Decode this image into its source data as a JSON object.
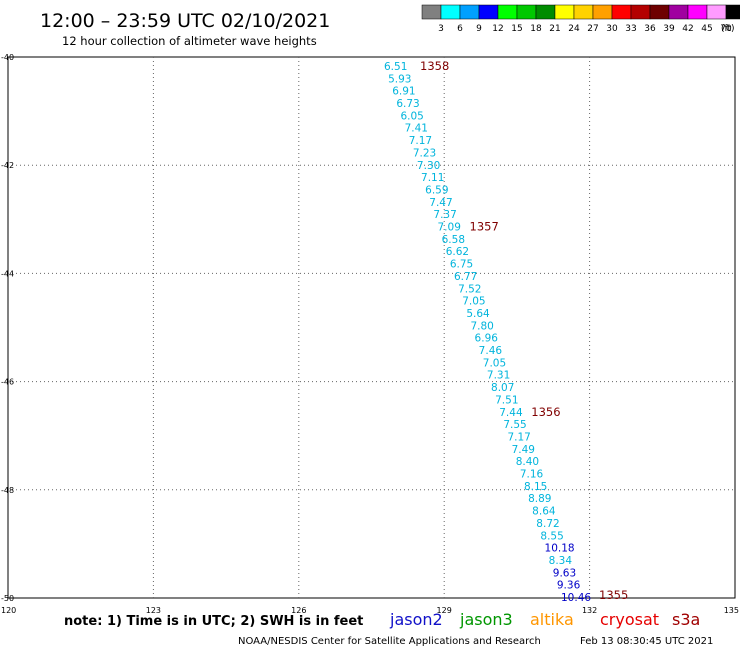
{
  "header": {
    "title": "12:00 – 23:59 UTC 02/10/2021",
    "subtitle": "12 hour collection of altimeter wave heights"
  },
  "legend": {
    "swatches": [
      {
        "color": "#808080",
        "label": "3"
      },
      {
        "color": "#00ffff",
        "label": "6"
      },
      {
        "color": "#00a0ff",
        "label": "9"
      },
      {
        "color": "#0000ff",
        "label": "12"
      },
      {
        "color": "#00ff00",
        "label": "15"
      },
      {
        "color": "#00c800",
        "label": "18"
      },
      {
        "color": "#008c00",
        "label": "21"
      },
      {
        "color": "#ffff00",
        "label": "24"
      },
      {
        "color": "#ffd200",
        "label": "27"
      },
      {
        "color": "#ffa000",
        "label": "30"
      },
      {
        "color": "#ff0000",
        "label": "33"
      },
      {
        "color": "#b40000",
        "label": "36"
      },
      {
        "color": "#6e0000",
        "label": "39"
      },
      {
        "color": "#a000a0",
        "label": "42"
      },
      {
        "color": "#ff00ff",
        "label": "45"
      },
      {
        "color": "#ff9bff",
        "label": "70"
      },
      {
        "color": "#000000",
        "label": ""
      }
    ],
    "unit": "(ft)"
  },
  "footer": {
    "note": "note:  1) Time is in UTC;  2) SWH is in feet",
    "satellites": [
      {
        "name": "jason2",
        "color": "#1010c8"
      },
      {
        "name": "jason3",
        "color": "#009600"
      },
      {
        "name": "altika",
        "color": "#ff9600"
      },
      {
        "name": "cryosat",
        "color": "#e60000"
      },
      {
        "name": "s3a",
        "color": "#a00000"
      }
    ],
    "credit": "NOAA/NESDIS Center for Satellite Applications and Research",
    "timestamp": "Feb 13 08:30:45 UTC 2021"
  },
  "chart_data": {
    "type": "scatter",
    "title": "12:00 – 23:59 UTC 02/10/2021",
    "subtitle": "12 hour collection of altimeter wave heights",
    "x_axis": {
      "range": [
        120,
        135
      ],
      "ticks": [
        120,
        123,
        126,
        129,
        132,
        135
      ],
      "tick_labels": [
        "120",
        "123",
        "126",
        "129",
        "132",
        "135"
      ]
    },
    "y_axis": {
      "range": [
        -50,
        -40
      ],
      "ticks": [
        -50,
        -48,
        -46,
        -44,
        -42,
        -40
      ],
      "tick_labels": [
        "-50",
        "-48",
        "-46",
        "-44",
        "-42",
        "-40"
      ]
    },
    "grid": "dotted",
    "wave_heights_ft": [
      {
        "lon": 128.2,
        "lat": -40.1,
        "swh": "6.51",
        "color": "#00b4dc"
      },
      {
        "lon": 128.35,
        "lat": -40.4,
        "swh": "5.93",
        "color": "#00b4dc"
      },
      {
        "lon": 128.45,
        "lat": -40.7,
        "swh": "6.91",
        "color": "#00b4dc"
      },
      {
        "lon": 128.5,
        "lat": -41.0,
        "swh": "6.73",
        "color": "#00b4dc"
      },
      {
        "lon": 128.6,
        "lat": -41.3,
        "swh": "6.05",
        "color": "#00b4dc"
      },
      {
        "lon": 128.65,
        "lat": -41.6,
        "swh": "7.41",
        "color": "#00b4dc"
      },
      {
        "lon": 128.75,
        "lat": -41.9,
        "swh": "7.17",
        "color": "#00b4dc"
      },
      {
        "lon": 128.8,
        "lat": -42.2,
        "swh": "7.23",
        "color": "#00b4dc"
      },
      {
        "lon": 128.9,
        "lat": -42.4,
        "swh": "7.30",
        "color": "#00b4dc"
      },
      {
        "lon": 128.95,
        "lat": -42.7,
        "swh": "7.11",
        "color": "#00b4dc"
      },
      {
        "lon": 129.0,
        "lat": -43.0,
        "swh": "6.59",
        "color": "#00b4dc"
      },
      {
        "lon": 129.1,
        "lat": -43.3,
        "swh": "7.47",
        "color": "#00b4dc"
      },
      {
        "lon": 129.15,
        "lat": -43.6,
        "swh": "7.37",
        "color": "#00b4dc"
      },
      {
        "lon": 129.2,
        "lat": -43.9,
        "swh": "7.09",
        "color": "#00b4dc"
      },
      {
        "lon": 129.3,
        "lat": -44.2,
        "swh": "6.58",
        "color": "#00b4dc"
      },
      {
        "lon": 129.35,
        "lat": -44.5,
        "swh": "6.62",
        "color": "#00b4dc"
      },
      {
        "lon": 129.45,
        "lat": -44.8,
        "swh": "6.75",
        "color": "#00b4dc"
      },
      {
        "lon": 129.5,
        "lat": -45.1,
        "swh": "6.77",
        "color": "#00b4dc"
      },
      {
        "lon": 129.6,
        "lat": -45.4,
        "swh": "7.52",
        "color": "#00b4dc"
      },
      {
        "lon": 129.65,
        "lat": -45.7,
        "swh": "7.05",
        "color": "#00b4dc"
      },
      {
        "lon": 129.75,
        "lat": -46.0,
        "swh": "5.64",
        "color": "#00b4dc"
      },
      {
        "lon": 129.8,
        "lat": -46.3,
        "swh": "7.80",
        "color": "#00b4dc"
      },
      {
        "lon": 129.9,
        "lat": -46.6,
        "swh": "6.96",
        "color": "#00b4dc"
      },
      {
        "lon": 129.95,
        "lat": -46.9,
        "swh": "7.46",
        "color": "#00b4dc"
      },
      {
        "lon": 130.05,
        "lat": -47.2,
        "swh": "7.05",
        "color": "#00b4dc"
      },
      {
        "lon": 130.1,
        "lat": -47.5,
        "swh": "7.31",
        "color": "#00b4dc"
      },
      {
        "lon": 130.2,
        "lat": -47.8,
        "swh": "8.07",
        "color": "#00b4dc"
      },
      {
        "lon": 130.25,
        "lat": -48.1,
        "swh": "7.51",
        "color": "#00b4dc"
      },
      {
        "lon": 130.35,
        "lat": -48.4,
        "swh": "7.44",
        "color": "#00b4dc"
      },
      {
        "lon": 130.4,
        "lat": -48.7,
        "swh": "7.55",
        "color": "#00b4dc"
      },
      {
        "lon": 130.5,
        "lat": -49.0,
        "swh": "7.17",
        "color": "#00b4dc"
      },
      {
        "lon": 130.55,
        "lat": -49.3,
        "swh": "7.49",
        "color": "#00b4dc"
      },
      {
        "lon": 130.6,
        "lat": -49.6,
        "swh": "8.40",
        "color": "#00b4dc"
      },
      {
        "lon": 130.7,
        "lat": -49.9,
        "swh": "7.16",
        "color": "#00b4dc"
      },
      {
        "lon": 130.75,
        "lat": -50.2,
        "swh": "8.15",
        "color": "#00b4dc"
      },
      {
        "lon": 130.85,
        "lat": -50.5,
        "swh": "8.89",
        "color": "#00b4dc"
      },
      {
        "lon": 130.9,
        "lat": -50.8,
        "swh": "8.64",
        "color": "#00b4dc"
      },
      {
        "lon": 131.0,
        "lat": -51.1,
        "swh": "8.72",
        "color": "#00b4dc"
      },
      {
        "lon": 131.05,
        "lat": -51.4,
        "swh": "8.55",
        "color": "#00b4dc"
      },
      {
        "lon": 131.15,
        "lat": -51.7,
        "swh": "10.18",
        "color": "#0000c8"
      },
      {
        "lon": 131.2,
        "lat": -52.0,
        "swh": "8.34",
        "color": "#00b4dc"
      },
      {
        "lon": 131.3,
        "lat": -52.3,
        "swh": "9.63",
        "color": "#0000c8"
      },
      {
        "lon": 131.35,
        "lat": -52.6,
        "swh": "9.36",
        "color": "#0000c8"
      },
      {
        "lon": 131.4,
        "lat": -52.8,
        "swh": "10.46",
        "color": "#0000c8"
      }
    ],
    "pass_times": [
      {
        "lon": 128.75,
        "lat": -40.1,
        "time": "1358"
      },
      {
        "lon": 129.7,
        "lat": -43.9,
        "time": "1357"
      },
      {
        "lon": 131.0,
        "lat": -48.4,
        "time": "1356"
      },
      {
        "lon": 131.85,
        "lat": -52.8,
        "time": "1355"
      }
    ]
  }
}
